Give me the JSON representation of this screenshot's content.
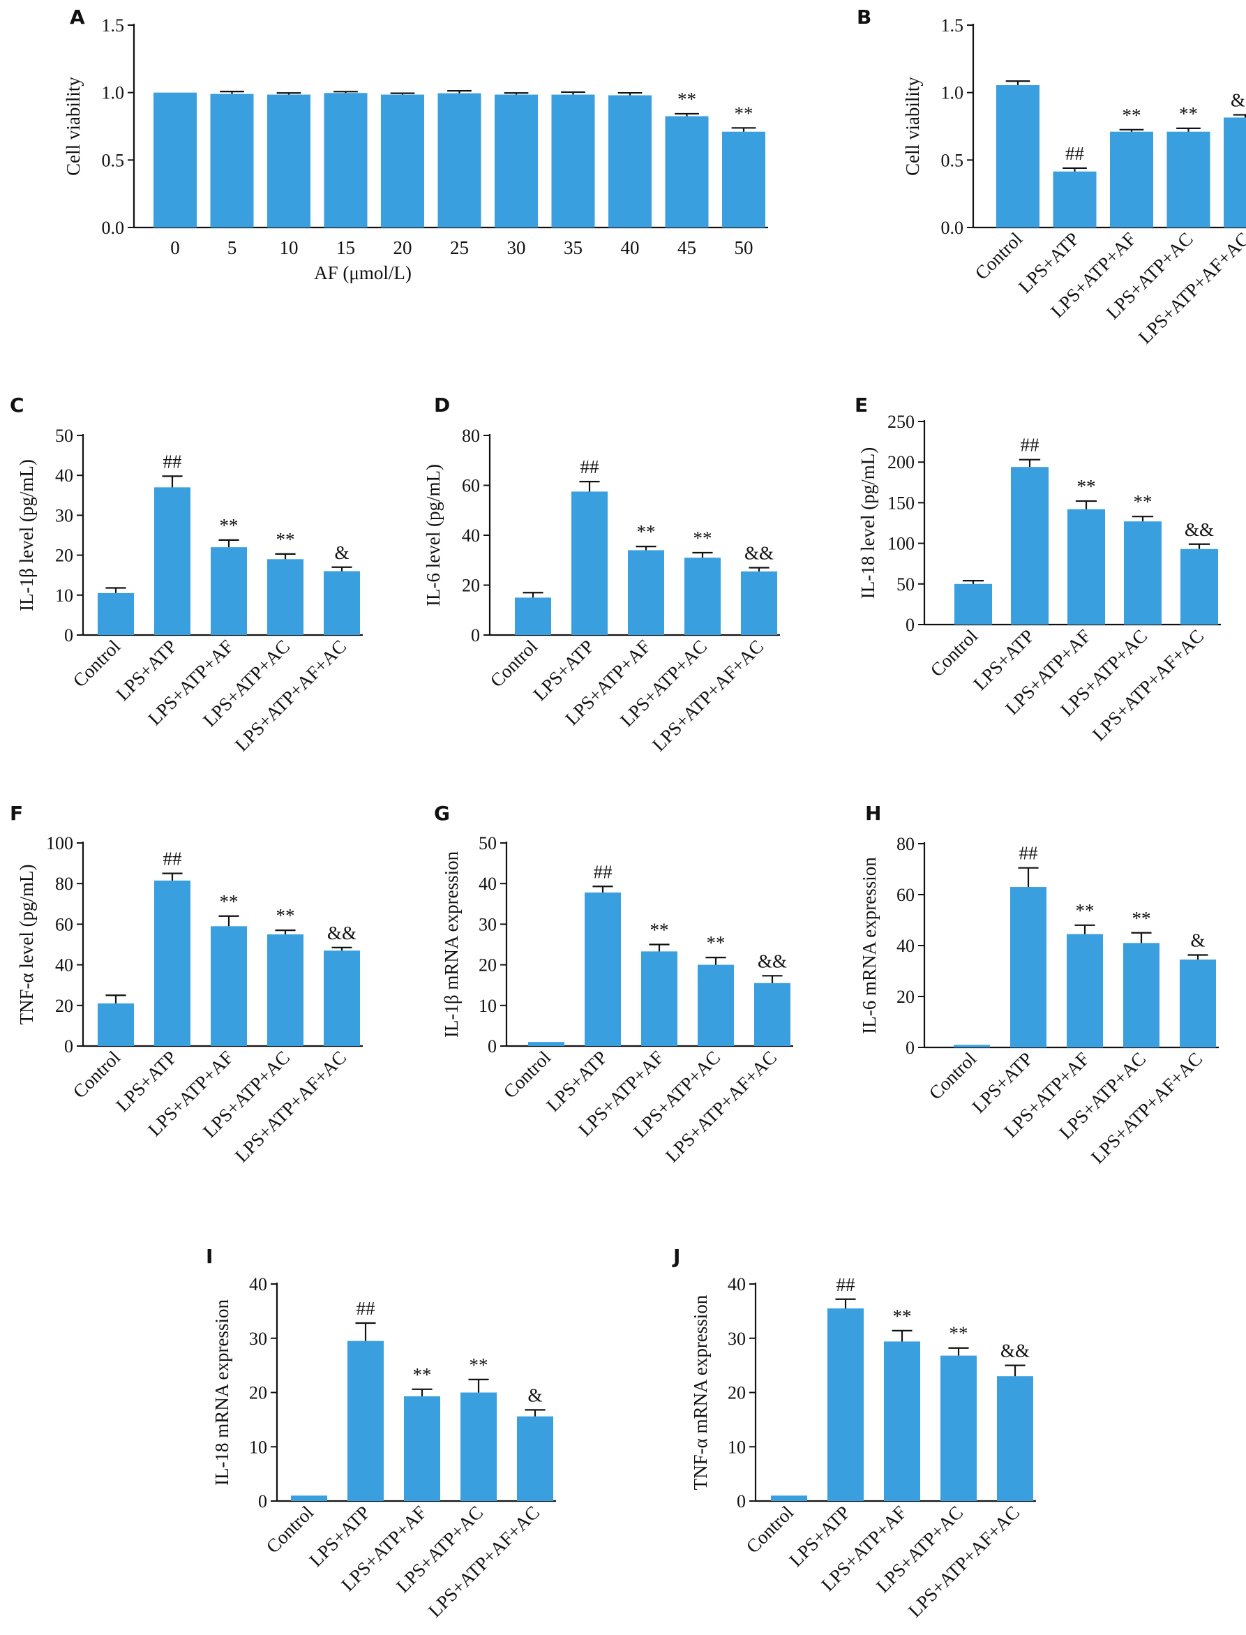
{
  "chart_data": [
    {
      "type": "bar",
      "panel_label": "A",
      "categories": [
        "0",
        "5",
        "10",
        "15",
        "20",
        "25",
        "30",
        "35",
        "40",
        "45",
        "50"
      ],
      "values": [
        1.0,
        0.99,
        0.985,
        0.997,
        0.985,
        0.995,
        0.985,
        0.985,
        0.98,
        0.825,
        0.71
      ],
      "errors": [
        0,
        0.018,
        0.012,
        0.01,
        0.01,
        0.018,
        0.012,
        0.018,
        0.018,
        0.018,
        0.028
      ],
      "annotations": [
        "",
        "",
        "",
        "",
        "",
        "",
        "",
        "",
        "",
        "**",
        "**"
      ],
      "xlabel": "AF (μmol/L)",
      "ylabel": "Cell viability",
      "ylim": [
        0,
        1.5
      ],
      "yticks": [
        "0.0",
        "0.5",
        "1.0",
        "1.5"
      ],
      "color": "#3a9fde"
    },
    {
      "type": "bar",
      "panel_label": "B",
      "categories": [
        "Control",
        "LPS+ATP",
        "LPS+ATP+AF",
        "LPS+ATP+AC",
        "LPS+ATP+AF+AC"
      ],
      "values": [
        1.055,
        0.415,
        0.71,
        0.71,
        0.815
      ],
      "errors": [
        0.03,
        0.025,
        0.015,
        0.025,
        0.02
      ],
      "annotations": [
        "",
        "##",
        "**",
        "**",
        "&&"
      ],
      "xlabel": "",
      "ylabel": "Cell viability",
      "ylim": [
        0,
        1.5
      ],
      "yticks": [
        "0.0",
        "0.5",
        "1.0",
        "1.5"
      ],
      "color": "#3a9fde"
    },
    {
      "type": "bar",
      "panel_label": "C",
      "categories": [
        "Control",
        "LPS+ATP",
        "LPS+ATP+AF",
        "LPS+ATP+AC",
        "LPS+ATP+AF+AC"
      ],
      "values": [
        10.5,
        37,
        22,
        19,
        16
      ],
      "errors": [
        1.3,
        2.8,
        1.8,
        1.3,
        1.0
      ],
      "annotations": [
        "",
        "##",
        "**",
        "**",
        "&"
      ],
      "xlabel": "",
      "ylabel": "IL-1β level (pg/mL)",
      "ylim": [
        0,
        50
      ],
      "yticks": [
        "0",
        "10",
        "20",
        "30",
        "40",
        "50"
      ],
      "color": "#3a9fde"
    },
    {
      "type": "bar",
      "panel_label": "D",
      "categories": [
        "Control",
        "LPS+ATP",
        "LPS+ATP+AF",
        "LPS+ATP+AC",
        "LPS+ATP+AF+AC"
      ],
      "values": [
        15,
        57.5,
        34,
        31,
        25.5
      ],
      "errors": [
        2,
        4,
        1.5,
        2,
        1.5
      ],
      "annotations": [
        "",
        "##",
        "**",
        "**",
        "&&"
      ],
      "xlabel": "",
      "ylabel": "IL-6 level (pg/mL)",
      "ylim": [
        0,
        80
      ],
      "yticks": [
        "0",
        "20",
        "40",
        "60",
        "80"
      ],
      "color": "#3a9fde"
    },
    {
      "type": "bar",
      "panel_label": "E",
      "categories": [
        "Control",
        "LPS+ATP",
        "LPS+ATP+AF",
        "LPS+ATP+AC",
        "LPS+ATP+AF+AC"
      ],
      "values": [
        50,
        194,
        142,
        127,
        93
      ],
      "errors": [
        4,
        9,
        10,
        6,
        6
      ],
      "annotations": [
        "",
        "##",
        "**",
        "**",
        "&&"
      ],
      "xlabel": "",
      "ylabel": "IL-18 level (pg/mL)",
      "ylim": [
        0,
        250
      ],
      "yticks": [
        "0",
        "50",
        "100",
        "150",
        "200",
        "250"
      ],
      "color": "#3a9fde"
    },
    {
      "type": "bar",
      "panel_label": "F",
      "categories": [
        "Control",
        "LPS+ATP",
        "LPS+ATP+AF",
        "LPS+ATP+AC",
        "LPS+ATP+AF+AC"
      ],
      "values": [
        21,
        81.5,
        59,
        55,
        47
      ],
      "errors": [
        4,
        3.5,
        5,
        2,
        1.5
      ],
      "annotations": [
        "",
        "##",
        "**",
        "**",
        "&&"
      ],
      "xlabel": "",
      "ylabel": "TNF-α level (pg/mL)",
      "ylim": [
        0,
        100
      ],
      "yticks": [
        "0",
        "20",
        "40",
        "60",
        "80",
        "100"
      ],
      "color": "#3a9fde"
    },
    {
      "type": "bar",
      "panel_label": "G",
      "categories": [
        "Control",
        "LPS+ATP",
        "LPS+ATP+AF",
        "LPS+ATP+AC",
        "LPS+ATP+AF+AC"
      ],
      "values": [
        1,
        37.8,
        23.3,
        20,
        15.5
      ],
      "errors": [
        0,
        1.5,
        1.7,
        1.8,
        1.8
      ],
      "annotations": [
        "",
        "##",
        "**",
        "**",
        "&&"
      ],
      "xlabel": "",
      "ylabel": "IL-1β mRNA expression",
      "ylim": [
        0,
        50
      ],
      "yticks": [
        "0",
        "10",
        "20",
        "30",
        "40",
        "50"
      ],
      "color": "#3a9fde"
    },
    {
      "type": "bar",
      "panel_label": "H",
      "categories": [
        "Control",
        "LPS+ATP",
        "LPS+ATP+AF",
        "LPS+ATP+AC",
        "LPS+ATP+AF+AC"
      ],
      "values": [
        1,
        63,
        44.5,
        41,
        34.5
      ],
      "errors": [
        0,
        7.5,
        3.5,
        4,
        1.8
      ],
      "annotations": [
        "",
        "##",
        "**",
        "**",
        "&"
      ],
      "xlabel": "",
      "ylabel": "IL-6 mRNA expression",
      "ylim": [
        0,
        80
      ],
      "yticks": [
        "0",
        "20",
        "40",
        "60",
        "80"
      ],
      "color": "#3a9fde"
    },
    {
      "type": "bar",
      "panel_label": "I",
      "categories": [
        "Control",
        "LPS+ATP",
        "LPS+ATP+AF",
        "LPS+ATP+AC",
        "LPS+ATP+AF+AC"
      ],
      "values": [
        1,
        29.5,
        19.3,
        20,
        15.6
      ],
      "errors": [
        0,
        3.3,
        1.3,
        2.4,
        1.2
      ],
      "annotations": [
        "",
        "##",
        "**",
        "**",
        "&"
      ],
      "xlabel": "",
      "ylabel": "IL-18 mRNA expression",
      "ylim": [
        0,
        40
      ],
      "yticks": [
        "0",
        "10",
        "20",
        "30",
        "40"
      ],
      "color": "#3a9fde"
    },
    {
      "type": "bar",
      "panel_label": "J",
      "categories": [
        "Control",
        "LPS+ATP",
        "LPS+ATP+AF",
        "LPS+ATP+AC",
        "LPS+ATP+AF+AC"
      ],
      "values": [
        1,
        35.5,
        29.4,
        26.8,
        23
      ],
      "errors": [
        0,
        1.7,
        2,
        1.4,
        2
      ],
      "annotations": [
        "",
        "##",
        "**",
        "**",
        "&&"
      ],
      "xlabel": "",
      "ylabel": "TNF-α mRNA expression",
      "ylim": [
        0,
        40
      ],
      "yticks": [
        "0",
        "10",
        "20",
        "30",
        "40"
      ],
      "color": "#3a9fde"
    }
  ]
}
